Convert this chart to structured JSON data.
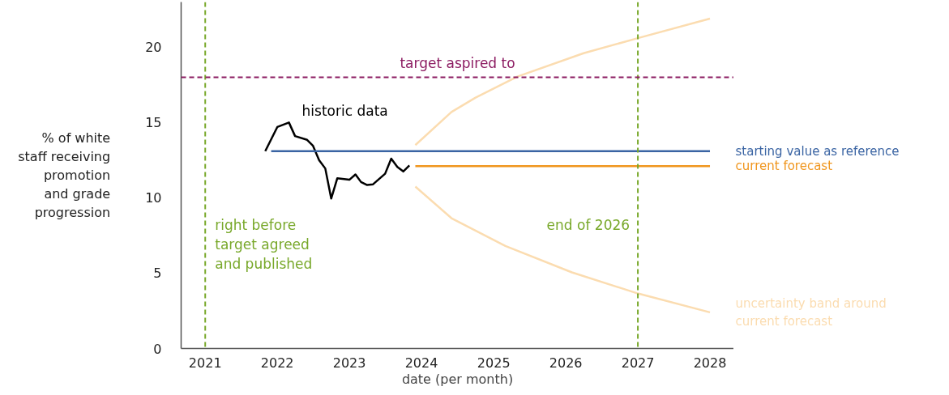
{
  "chart_data": {
    "type": "line",
    "xlabel": "date (per month)",
    "ylabel": "% of white\nstaff receiving\npromotion\nand grade\nprogression",
    "xlim": [
      "2020-09",
      "2028-05"
    ],
    "ylim": [
      0,
      23
    ],
    "xticks": [
      {
        "value": "2021-01-01",
        "label": "2021"
      },
      {
        "value": "2022-01-01",
        "label": "2022"
      },
      {
        "value": "2023-01-01",
        "label": "2023"
      },
      {
        "value": "2024-01-01",
        "label": "2024"
      },
      {
        "value": "2025-01-01",
        "label": "2025"
      },
      {
        "value": "2026-01-01",
        "label": "2026"
      },
      {
        "value": "2027-01-01",
        "label": "2027"
      },
      {
        "value": "2028-01-01",
        "label": "2028"
      }
    ],
    "yticks": [
      0,
      5,
      10,
      15,
      20
    ],
    "grid": false,
    "marker": "none",
    "line_style": "solid",
    "series": [
      {
        "name": "historic data",
        "color": "#000000",
        "x": [
          "2021-11",
          "2022-01",
          "2022-03",
          "2022-04",
          "2022-06",
          "2022-07",
          "2022-08",
          "2022-09",
          "2022-10",
          "2022-11",
          "2023-01",
          "2023-02",
          "2023-03",
          "2023-04",
          "2023-05",
          "2023-07",
          "2023-08",
          "2023-09",
          "2023-10",
          "2023-11"
        ],
        "values": [
          13.1,
          14.7,
          15.0,
          14.1,
          13.85,
          13.45,
          12.5,
          11.95,
          9.95,
          11.3,
          11.2,
          11.55,
          11.05,
          10.85,
          10.9,
          11.6,
          12.6,
          12.05,
          11.75,
          12.15
        ]
      },
      {
        "name": "starting value as reference",
        "color": "#3a64a3",
        "x": [
          "2021-12",
          "2028-01"
        ],
        "values": [
          13.1,
          13.1
        ]
      },
      {
        "name": "current forecast",
        "color": "#f0961e",
        "x": [
          "2023-12",
          "2028-01"
        ],
        "values": [
          12.1,
          12.1
        ]
      },
      {
        "color": "#fbdcb0",
        "x": [
          "2023-12",
          "2024-06",
          "2024-10",
          "2025-05",
          "2026-04",
          "2027-01",
          "2028-01"
        ],
        "values": [
          13.5,
          15.7,
          16.65,
          18.05,
          19.6,
          20.6,
          21.9
        ]
      },
      {
        "name": "uncertainty band around current forecast",
        "color": "#fbdcb0",
        "x": [
          "2023-12",
          "2024-06",
          "2025-03",
          "2026-02",
          "2027-01",
          "2028-01"
        ],
        "values": [
          10.75,
          8.65,
          6.8,
          5.05,
          3.65,
          2.4
        ]
      }
    ],
    "ref_lines": [
      {
        "axis": "x",
        "value": "2021-01-01",
        "label": "right before target agreed and published",
        "color": "#78a82a",
        "line_style": "dashed"
      },
      {
        "axis": "x",
        "value": "2027-01-01",
        "label": "end of 2026",
        "color": "#78a82a",
        "line_style": "dashed"
      },
      {
        "axis": "y",
        "value": 18,
        "label": "target aspired to",
        "color": "#8c1c62",
        "line_style": "dashed"
      }
    ]
  }
}
